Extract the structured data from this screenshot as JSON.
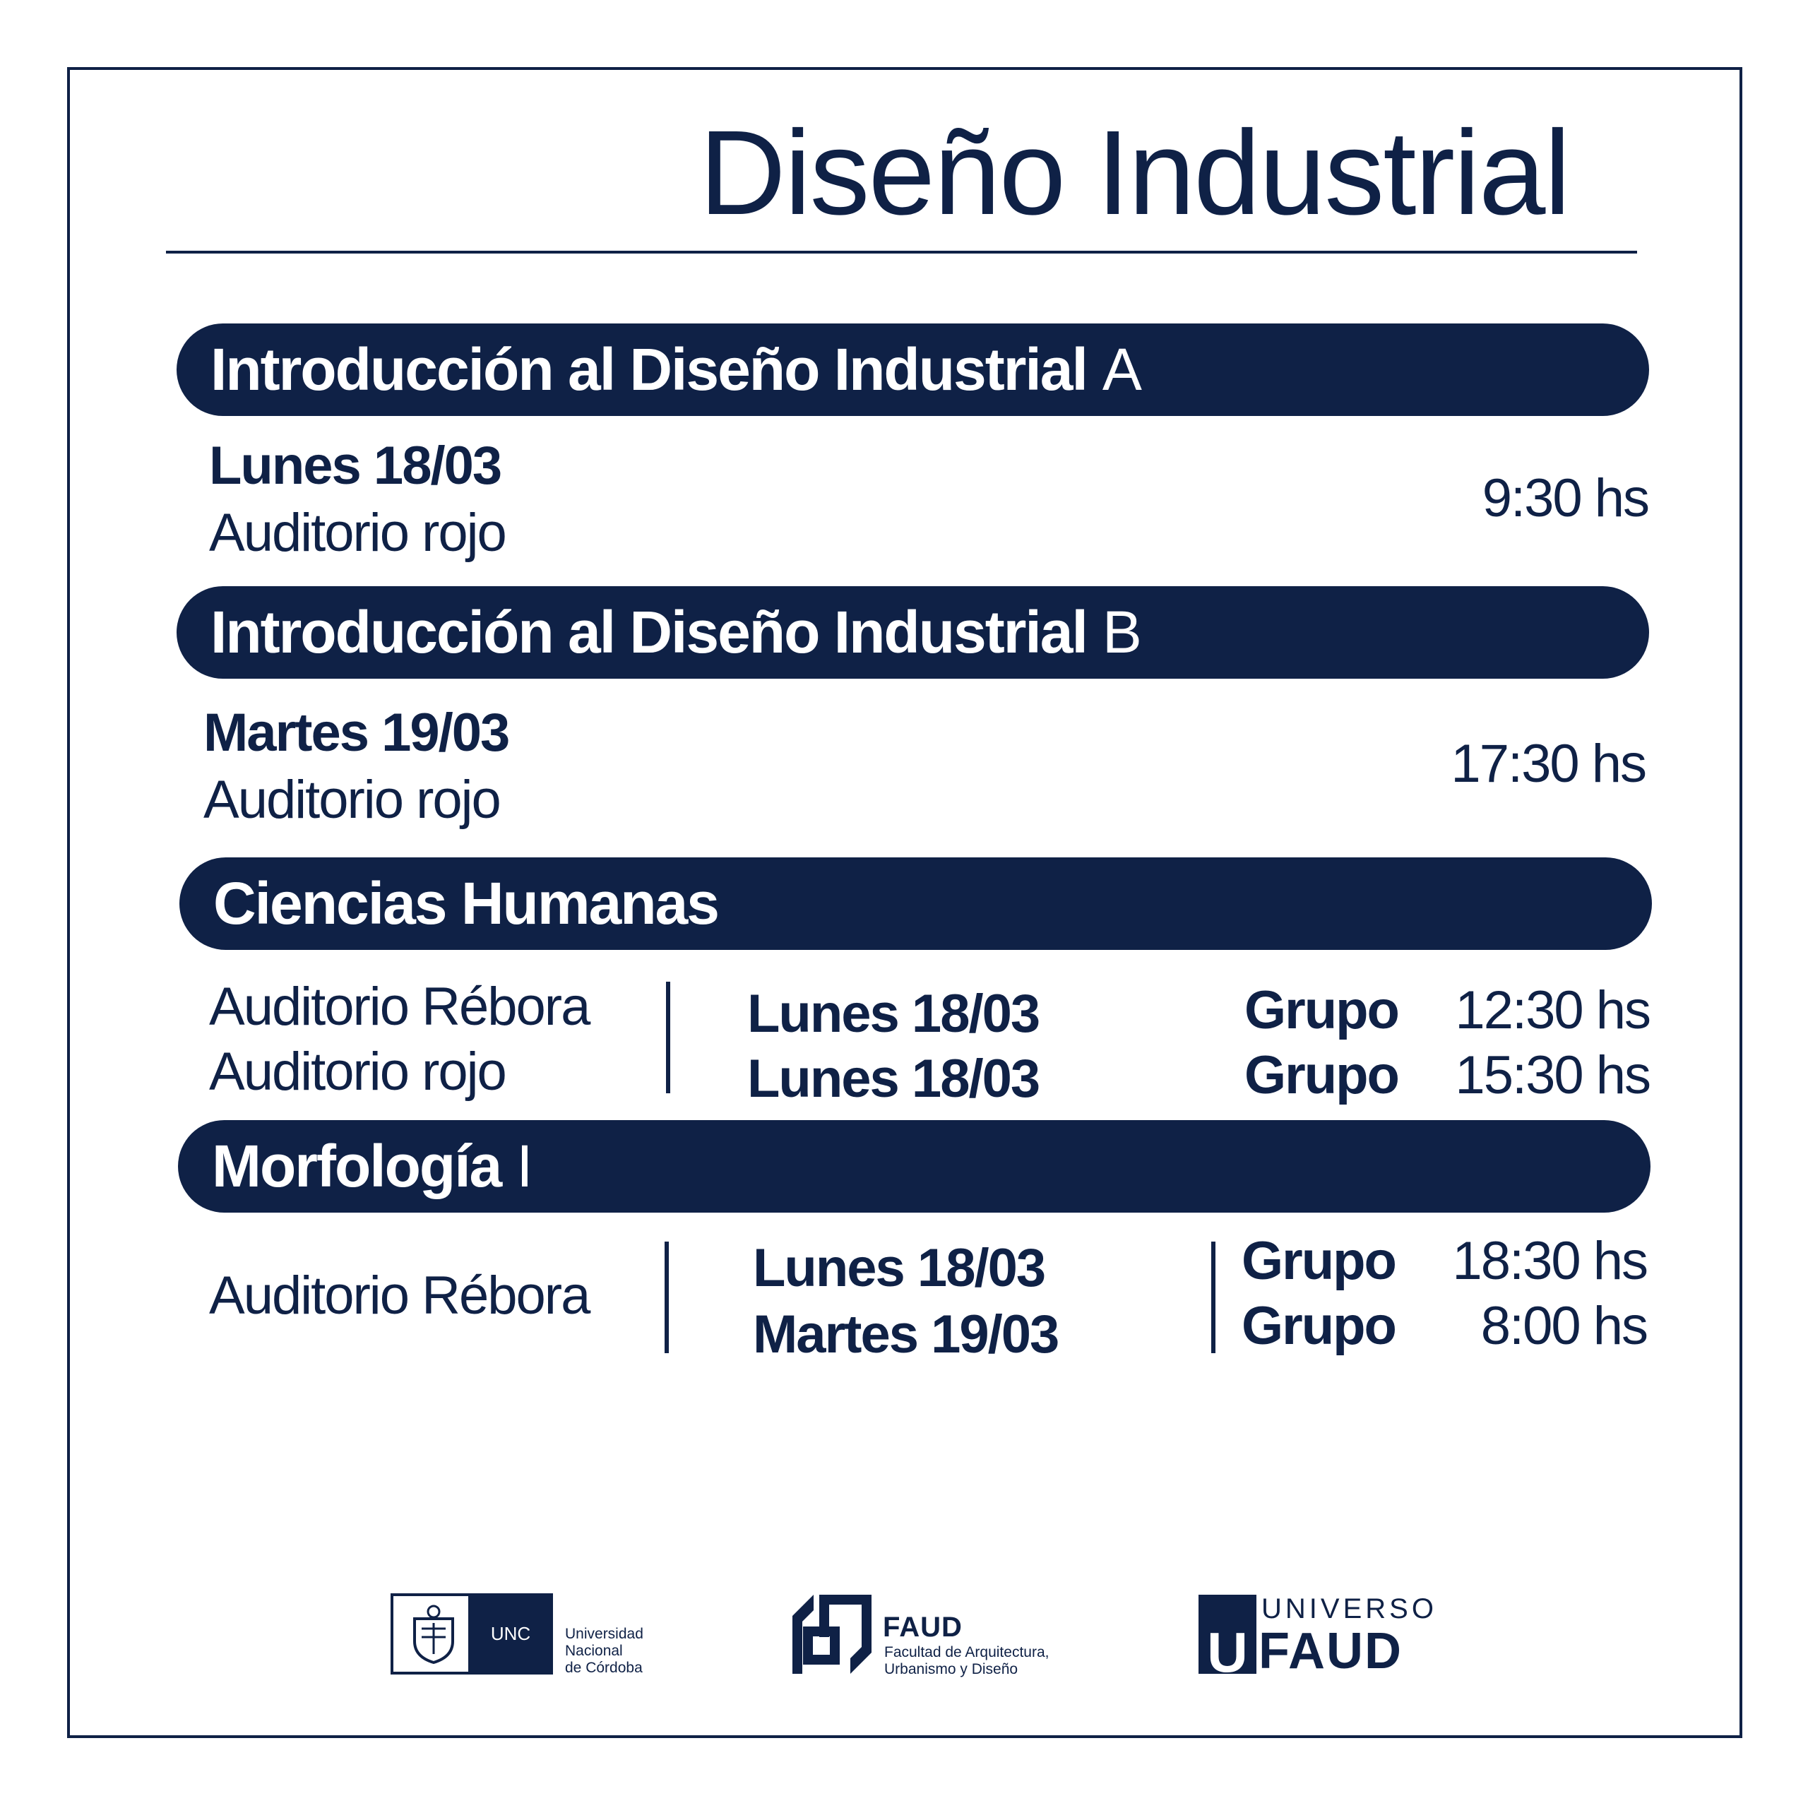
{
  "title": "Diseño Industrial",
  "sections": [
    {
      "name": "Introducción al Diseño Industrial",
      "suffix": "A"
    },
    {
      "name": "Introducción al Diseño Industrial",
      "suffix": "B"
    },
    {
      "name": "Ciencias Humanas",
      "suffix": ""
    },
    {
      "name": "Morfología",
      "suffix": "I"
    }
  ],
  "intro_a": {
    "day": "Lunes 18/03",
    "room": "Auditorio rojo",
    "time": "9:30 hs"
  },
  "intro_b": {
    "day": "Martes 19/03",
    "room": "Auditorio rojo",
    "time": "17:30 hs"
  },
  "ciencias": [
    {
      "room": "Auditorio Rébora",
      "day": "Lunes 18/03",
      "group": "Grupo",
      "time": "12:30 hs"
    },
    {
      "room": "Auditorio rojo",
      "day": "Lunes 18/03",
      "group": "Grupo",
      "time": "15:30 hs"
    }
  ],
  "morfologia": {
    "room": "Auditorio Rébora",
    "rows": [
      {
        "day": "Lunes 18/03",
        "group": "Grupo",
        "time": "18:30 hs"
      },
      {
        "day": "Martes 19/03",
        "group": "Grupo",
        "time": "8:00 hs"
      }
    ]
  },
  "logos": {
    "unc": {
      "abbr": "UNC",
      "line1": "Universidad",
      "line2": "Nacional",
      "line3": "de Córdoba"
    },
    "faud": {
      "abbr": "FAUD",
      "line1": "Facultad de Arquitectura,",
      "line2": "Urbanismo y Diseño"
    },
    "universo": {
      "top": "UNIVERSO",
      "bottom": "FAUD",
      "letter": "U"
    }
  },
  "colors": {
    "navy": "#0f2146",
    "white": "#ffffff"
  }
}
